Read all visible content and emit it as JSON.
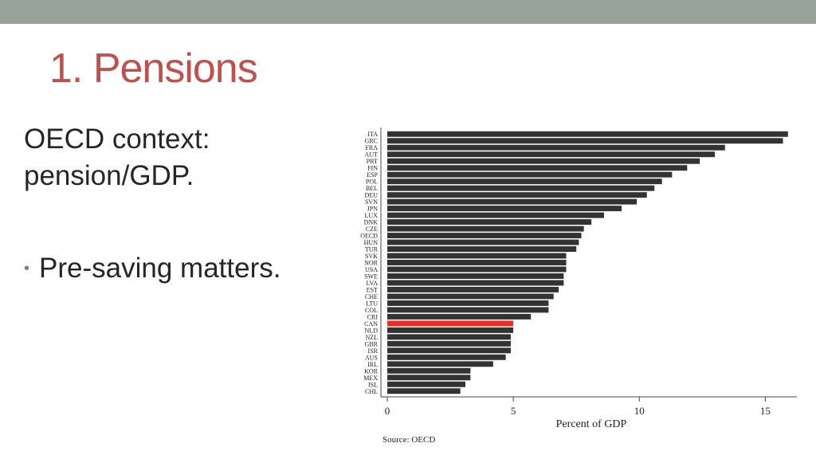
{
  "slide": {
    "title": "1. Pensions",
    "body_lines": [
      "OECD context:",
      "pension/GDP."
    ],
    "bullet": "Pre-saving matters.",
    "colors": {
      "top_band": "#97a39b",
      "title": "#c0504d",
      "text": "#262626",
      "bar": "#333333",
      "highlight_bar": "#ee2b24"
    }
  },
  "chart_data": {
    "type": "bar",
    "orientation": "horizontal",
    "categories": [
      "ITA",
      "GRC",
      "FRA",
      "AUT",
      "PRT",
      "FIN",
      "ESP",
      "POL",
      "BEL",
      "DEU",
      "SVN",
      "JPN",
      "LUX",
      "DNK",
      "CZE",
      "OECD",
      "HUN",
      "TUR",
      "SVK",
      "NOR",
      "USA",
      "SWE",
      "LVA",
      "EST",
      "CHE",
      "LTU",
      "COL",
      "CRI",
      "CAN",
      "NLD",
      "NZL",
      "GBR",
      "ISR",
      "AUS",
      "IRL",
      "KOR",
      "MEX",
      "ISL",
      "CHL"
    ],
    "values": [
      15.9,
      15.7,
      13.4,
      13.0,
      12.4,
      11.9,
      11.3,
      10.9,
      10.6,
      10.3,
      9.9,
      9.3,
      8.6,
      8.1,
      7.8,
      7.7,
      7.6,
      7.5,
      7.1,
      7.1,
      7.1,
      7.0,
      7.0,
      6.8,
      6.6,
      6.4,
      6.4,
      5.7,
      5.0,
      5.0,
      4.9,
      4.9,
      4.9,
      4.7,
      4.2,
      3.3,
      3.3,
      3.1,
      2.9
    ],
    "highlight": "CAN",
    "xlabel": "Percent of GDP",
    "ylabel": "",
    "xlim": [
      0,
      16
    ],
    "xticks": [
      0,
      5,
      10,
      15
    ],
    "source": "Source: OECD",
    "grid": false,
    "legend": "none"
  }
}
